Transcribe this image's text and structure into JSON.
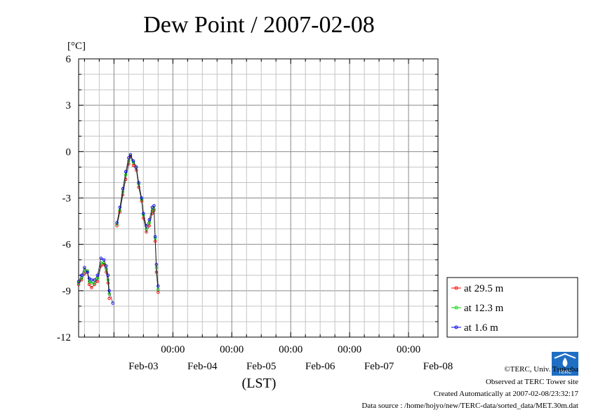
{
  "chart_data": {
    "type": "line",
    "title": "Dew Point / 2007-02-08",
    "ylabel": "[°C]",
    "xlabel": "(LST)",
    "ylim": [
      -12,
      6
    ],
    "yticks": [
      "6",
      "3",
      "0",
      "-3",
      "-6",
      "-9",
      "-12"
    ],
    "ytick_values": [
      6,
      3,
      0,
      -3,
      -6,
      -9,
      -12
    ],
    "xlim": [
      -0.6,
      5.5
    ],
    "xtick_time_labels": [
      "00:00",
      "00:00",
      "00:00",
      "00:00",
      "00:00"
    ],
    "xtick_positions": [
      1,
      2,
      3,
      4,
      5
    ],
    "xtick_date_labels": [
      "Feb-03",
      "Feb-04",
      "Feb-05",
      "Feb-06",
      "Feb-07",
      "Feb-08"
    ],
    "xtick_date_positions": [
      0.5,
      1.5,
      2.5,
      3.5,
      4.5,
      5.5
    ],
    "grid": true,
    "legend_position": "right",
    "series": [
      {
        "name": "at 29.5 m",
        "color": "#ff0000",
        "segments": [
          [
            [
              -0.6,
              -8.6
            ],
            [
              -0.55,
              -8.3
            ],
            [
              -0.5,
              -7.9
            ],
            [
              -0.45,
              -7.8
            ],
            [
              -0.42,
              -8.6
            ],
            [
              -0.38,
              -8.8
            ],
            [
              -0.33,
              -8.6
            ],
            [
              -0.28,
              -8.4
            ],
            [
              -0.22,
              -7.4
            ],
            [
              -0.17,
              -7.3
            ],
            [
              -0.13,
              -7.8
            ],
            [
              -0.1,
              -8.5
            ],
            [
              -0.08,
              -9.5
            ]
          ],
          [
            [
              0.05,
              -4.8
            ],
            [
              0.1,
              -3.9
            ],
            [
              0.15,
              -2.8
            ],
            [
              0.2,
              -1.8
            ],
            [
              0.25,
              -0.8
            ],
            [
              0.28,
              -0.3
            ],
            [
              0.33,
              -0.9
            ],
            [
              0.38,
              -1.2
            ],
            [
              0.42,
              -2.3
            ],
            [
              0.47,
              -3.2
            ],
            [
              0.5,
              -4.3
            ],
            [
              0.55,
              -5.2
            ],
            [
              0.6,
              -4.8
            ],
            [
              0.65,
              -4.0
            ],
            [
              0.68,
              -3.8
            ],
            [
              0.7,
              -5.8
            ],
            [
              0.72,
              -7.8
            ],
            [
              0.75,
              -9.1
            ]
          ]
        ]
      },
      {
        "name": "at 12.3 m",
        "color": "#00dd00",
        "segments": [
          [
            [
              -0.6,
              -8.5
            ],
            [
              -0.55,
              -8.2
            ],
            [
              -0.5,
              -7.7
            ],
            [
              -0.45,
              -7.7
            ],
            [
              -0.42,
              -8.4
            ],
            [
              -0.38,
              -8.5
            ],
            [
              -0.33,
              -8.5
            ],
            [
              -0.28,
              -8.2
            ],
            [
              -0.22,
              -7.2
            ],
            [
              -0.17,
              -7.2
            ],
            [
              -0.13,
              -7.6
            ],
            [
              -0.1,
              -8.3
            ],
            [
              -0.08,
              -9.2
            ]
          ],
          [
            [
              0.05,
              -4.7
            ],
            [
              0.1,
              -3.8
            ],
            [
              0.15,
              -2.6
            ],
            [
              0.2,
              -1.5
            ],
            [
              0.25,
              -0.6
            ],
            [
              0.28,
              -0.2
            ],
            [
              0.33,
              -0.7
            ],
            [
              0.38,
              -1.0
            ],
            [
              0.42,
              -2.1
            ],
            [
              0.47,
              -3.1
            ],
            [
              0.5,
              -4.1
            ],
            [
              0.55,
              -5.0
            ],
            [
              0.6,
              -4.6
            ],
            [
              0.65,
              -3.8
            ],
            [
              0.68,
              -3.7
            ],
            [
              0.7,
              -5.6
            ],
            [
              0.72,
              -7.5
            ],
            [
              0.75,
              -8.9
            ]
          ]
        ]
      },
      {
        "name": "at 1.6 m",
        "color": "#0000ff",
        "segments": [
          [
            [
              -0.6,
              -8.4
            ],
            [
              -0.55,
              -8.0
            ],
            [
              -0.5,
              -7.5
            ],
            [
              -0.45,
              -7.8
            ],
            [
              -0.42,
              -8.2
            ],
            [
              -0.38,
              -8.3
            ],
            [
              -0.33,
              -8.3
            ],
            [
              -0.28,
              -8.0
            ],
            [
              -0.22,
              -6.9
            ],
            [
              -0.17,
              -7.0
            ],
            [
              -0.13,
              -7.4
            ],
            [
              -0.1,
              -8.0
            ],
            [
              -0.08,
              -9.0
            ],
            [
              -0.02,
              -9.8
            ]
          ],
          [
            [
              0.05,
              -4.6
            ],
            [
              0.1,
              -3.6
            ],
            [
              0.15,
              -2.4
            ],
            [
              0.2,
              -1.3
            ],
            [
              0.25,
              -0.4
            ],
            [
              0.28,
              -0.2
            ],
            [
              0.33,
              -0.6
            ],
            [
              0.38,
              -1.0
            ],
            [
              0.42,
              -2.0
            ],
            [
              0.47,
              -3.0
            ],
            [
              0.5,
              -4.0
            ],
            [
              0.55,
              -4.8
            ],
            [
              0.6,
              -4.4
            ],
            [
              0.65,
              -3.6
            ],
            [
              0.68,
              -3.5
            ],
            [
              0.7,
              -5.5
            ],
            [
              0.72,
              -7.3
            ],
            [
              0.75,
              -8.7
            ]
          ]
        ]
      }
    ]
  },
  "legend": {
    "items": [
      {
        "label": "at 29.5 m",
        "color": "#ff0000"
      },
      {
        "label": "at 12.3 m",
        "color": "#00dd00"
      },
      {
        "label": "at 1.6 m",
        "color": "#0000ff"
      }
    ]
  },
  "credits": {
    "line1": "©TERC, Univ. Tsukuba",
    "line2": "Observed at TERC Tower site",
    "line3": "Created Automatically at 2007-02-08/23:32:17",
    "line4": "Data source : /home/hojyo/new/TERC-data/sorted_data/MET.30m.dat",
    "logo_text": "TERC"
  }
}
